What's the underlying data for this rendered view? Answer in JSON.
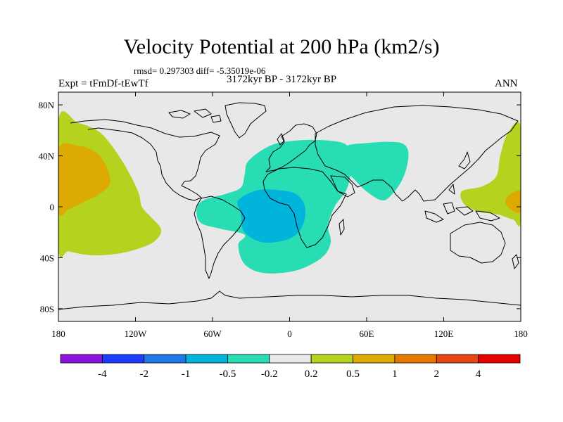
{
  "title": "Velocity Potential at 200 hPa (km2/s)",
  "stats": "rmsd= 0.297303  diff= -5.35019e-06",
  "experiment": "Expt = tFmDf-tEwTf",
  "period": "3172kyr BP - 3172kyr BP",
  "season": "ANN",
  "colors": {
    "background": "#e8e8e8",
    "pos_0_2": "#b4d21e",
    "pos_0_5": "#dcaa00",
    "neg_0_2": "#28dcb4",
    "neg_0_5": "#00b4dc",
    "coast": "#000000"
  },
  "chart_data": {
    "type": "heatmap",
    "title": "Velocity Potential at 200 hPa (km2/s)",
    "xlabel": "",
    "ylabel": "",
    "xlim": [
      -180,
      180
    ],
    "ylim": [
      -90,
      90
    ],
    "x_ticks": [
      {
        "value": -180,
        "label": "180"
      },
      {
        "value": -120,
        "label": "120W"
      },
      {
        "value": -60,
        "label": "60W"
      },
      {
        "value": 0,
        "label": "0"
      },
      {
        "value": 60,
        "label": "60E"
      },
      {
        "value": 120,
        "label": "120E"
      },
      {
        "value": 180,
        "label": "180"
      }
    ],
    "y_ticks": [
      {
        "value": 80,
        "label": "80N"
      },
      {
        "value": 40,
        "label": "40N"
      },
      {
        "value": 0,
        "label": "0"
      },
      {
        "value": -40,
        "label": "40S"
      },
      {
        "value": -80,
        "label": "80S"
      }
    ],
    "colorbar": {
      "colors": [
        "#8c14dc",
        "#1e3cff",
        "#1e78e6",
        "#00b4dc",
        "#28dcb4",
        "#e8e8e8",
        "#b4d21e",
        "#dcaa00",
        "#e67800",
        "#e64614",
        "#e60000"
      ],
      "labels": [
        "-4",
        "-2",
        "-1",
        "-0.5",
        "-0.2",
        "0.2",
        "0.5",
        "1",
        "2",
        "4"
      ]
    },
    "regions": [
      {
        "name": "pacific-west-positive-low",
        "level": "0.2 to 0.5",
        "color": "#b4d21e",
        "points": [
          [
            -180,
            68
          ],
          [
            -165,
            66
          ],
          [
            -150,
            60
          ],
          [
            -140,
            50
          ],
          [
            -128,
            32
          ],
          [
            -118,
            12
          ],
          [
            -115,
            0
          ],
          [
            -108,
            -8
          ],
          [
            -100,
            -18
          ],
          [
            -105,
            -27
          ],
          [
            -118,
            -33
          ],
          [
            -135,
            -37
          ],
          [
            -155,
            -38
          ],
          [
            -172,
            -35
          ],
          [
            -180,
            -32
          ]
        ]
      },
      {
        "name": "pacific-west-positive-mid",
        "level": "0.5 to 1",
        "color": "#dcaa00",
        "points": [
          [
            -180,
            45
          ],
          [
            -165,
            48
          ],
          [
            -150,
            42
          ],
          [
            -142,
            30
          ],
          [
            -140,
            18
          ],
          [
            -148,
            10
          ],
          [
            -160,
            4
          ],
          [
            -172,
            -2
          ],
          [
            -180,
            -4
          ]
        ]
      },
      {
        "name": "pacific-east-positive-low",
        "level": "0.2 to 0.5",
        "color": "#b4d21e",
        "points": [
          [
            180,
            62
          ],
          [
            170,
            58
          ],
          [
            164,
            40
          ],
          [
            161,
            24
          ],
          [
            150,
            16
          ],
          [
            134,
            12
          ],
          [
            136,
            2
          ],
          [
            148,
            -4
          ],
          [
            162,
            -6
          ],
          [
            174,
            -10
          ],
          [
            180,
            -10
          ]
        ]
      },
      {
        "name": "pacific-east-positive-mid",
        "level": "0.5 to 1",
        "color": "#dcaa00",
        "points": [
          [
            180,
            12
          ],
          [
            172,
            10
          ],
          [
            168,
            4
          ],
          [
            172,
            -2
          ],
          [
            180,
            -4
          ]
        ]
      },
      {
        "name": "atlantic-africa-negative-low",
        "level": "-0.5 to -0.2",
        "color": "#28dcb4",
        "points": [
          [
            -32,
            36
          ],
          [
            -15,
            48
          ],
          [
            5,
            52
          ],
          [
            30,
            52
          ],
          [
            45,
            48
          ],
          [
            48,
            35
          ],
          [
            45,
            15
          ],
          [
            35,
            0
          ],
          [
            30,
            -15
          ],
          [
            32,
            -28
          ],
          [
            25,
            -40
          ],
          [
            5,
            -50
          ],
          [
            -20,
            -52
          ],
          [
            -35,
            -45
          ],
          [
            -40,
            -30
          ],
          [
            -35,
            -22
          ],
          [
            -55,
            -17
          ],
          [
            -70,
            -12
          ],
          [
            -72,
            0
          ],
          [
            -65,
            6
          ],
          [
            -50,
            10
          ],
          [
            -38,
            15
          ],
          [
            -35,
            25
          ]
        ]
      },
      {
        "name": "atlantic-africa-negative-mid",
        "level": "-1 to -0.5",
        "color": "#00b4dc",
        "points": [
          [
            -40,
            5
          ],
          [
            -25,
            13
          ],
          [
            -8,
            13
          ],
          [
            5,
            10
          ],
          [
            12,
            0
          ],
          [
            10,
            -15
          ],
          [
            0,
            -25
          ],
          [
            -20,
            -28
          ],
          [
            -35,
            -20
          ],
          [
            -38,
            -5
          ]
        ]
      },
      {
        "name": "asia-negative-low",
        "level": "-0.5 to -0.2",
        "color": "#28dcb4",
        "points": [
          [
            45,
            48
          ],
          [
            60,
            50
          ],
          [
            75,
            51
          ],
          [
            87,
            50
          ],
          [
            92,
            45
          ],
          [
            92,
            35
          ],
          [
            88,
            22
          ],
          [
            80,
            10
          ],
          [
            72,
            5
          ],
          [
            60,
            12
          ],
          [
            50,
            22
          ],
          [
            42,
            30
          ],
          [
            40,
            40
          ]
        ]
      }
    ]
  }
}
